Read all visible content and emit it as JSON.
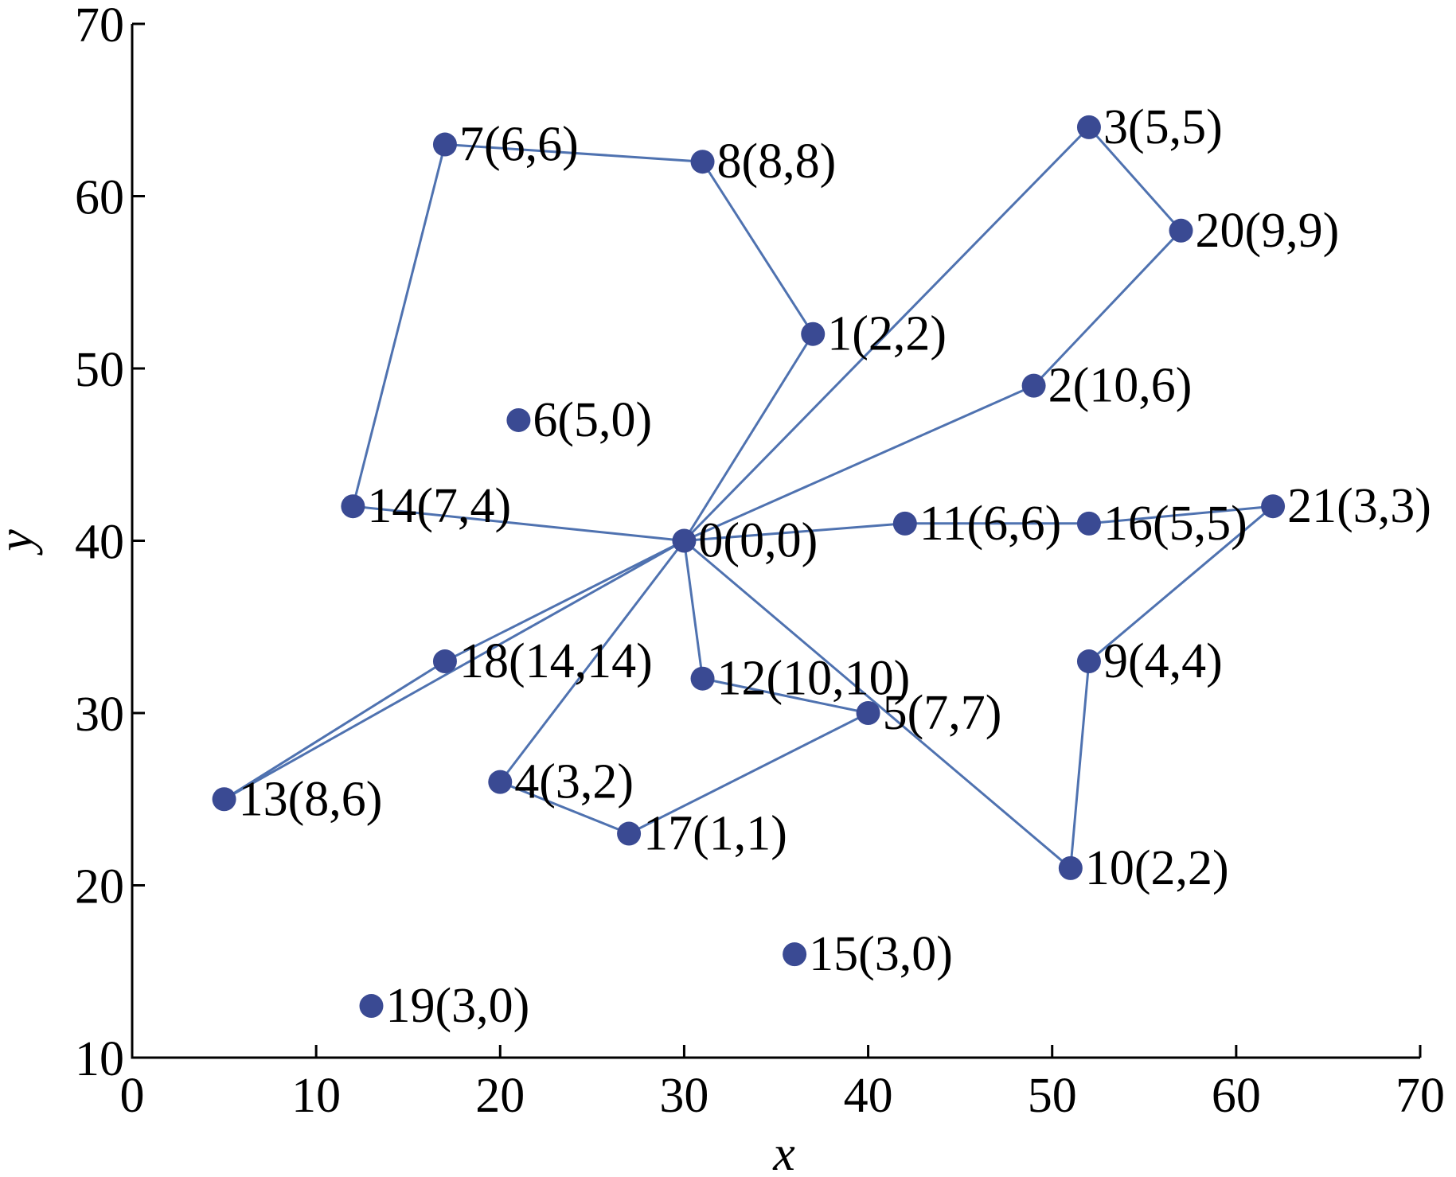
{
  "chart_data": {
    "type": "scatter",
    "xlabel": "x",
    "ylabel": "y",
    "xlim": [
      0,
      70
    ],
    "ylim": [
      10,
      70
    ],
    "xticks": [
      0,
      10,
      20,
      30,
      40,
      50,
      60,
      70
    ],
    "yticks": [
      10,
      20,
      30,
      40,
      50,
      60,
      70
    ],
    "grid": false,
    "colors": {
      "node": "#3a4a93",
      "route": "#4f72b0"
    },
    "points": [
      {
        "id": 0,
        "x": 30,
        "y": 40,
        "label": "0(0,0)"
      },
      {
        "id": 1,
        "x": 37,
        "y": 52,
        "label": "1(2,2)"
      },
      {
        "id": 2,
        "x": 49,
        "y": 49,
        "label": "2(10,6)"
      },
      {
        "id": 3,
        "x": 52,
        "y": 64,
        "label": "3(5,5)"
      },
      {
        "id": 4,
        "x": 20,
        "y": 26,
        "label": "4(3,2)"
      },
      {
        "id": 5,
        "x": 40,
        "y": 30,
        "label": "5(7,7)"
      },
      {
        "id": 6,
        "x": 21,
        "y": 47,
        "label": "6(5,0)"
      },
      {
        "id": 7,
        "x": 17,
        "y": 63,
        "label": "7(6,6)"
      },
      {
        "id": 8,
        "x": 31,
        "y": 62,
        "label": "8(8,8)"
      },
      {
        "id": 9,
        "x": 52,
        "y": 33,
        "label": "9(4,4)"
      },
      {
        "id": 10,
        "x": 51,
        "y": 21,
        "label": "10(2,2)"
      },
      {
        "id": 11,
        "x": 42,
        "y": 41,
        "label": "11(6,6)"
      },
      {
        "id": 12,
        "x": 31,
        "y": 32,
        "label": "12(10,10)"
      },
      {
        "id": 13,
        "x": 5,
        "y": 25,
        "label": "13(8,6)"
      },
      {
        "id": 14,
        "x": 12,
        "y": 42,
        "label": "14(7,4)"
      },
      {
        "id": 15,
        "x": 36,
        "y": 16,
        "label": "15(3,0)"
      },
      {
        "id": 16,
        "x": 52,
        "y": 41,
        "label": "16(5,5)"
      },
      {
        "id": 17,
        "x": 27,
        "y": 23,
        "label": "17(1,1)"
      },
      {
        "id": 18,
        "x": 17,
        "y": 33,
        "label": "18(14,14)"
      },
      {
        "id": 19,
        "x": 13,
        "y": 13,
        "label": "19(3,0)"
      },
      {
        "id": 20,
        "x": 57,
        "y": 58,
        "label": "20(9,9)"
      },
      {
        "id": 21,
        "x": 62,
        "y": 42,
        "label": "21(3,3)"
      }
    ],
    "routes": [
      [
        0,
        1,
        8,
        7,
        14,
        0
      ],
      [
        0,
        3,
        20,
        2,
        0
      ],
      [
        0,
        11,
        16,
        21,
        9,
        10,
        0
      ],
      [
        0,
        12,
        5,
        17,
        4,
        0
      ],
      [
        0,
        18,
        13,
        0
      ]
    ]
  }
}
